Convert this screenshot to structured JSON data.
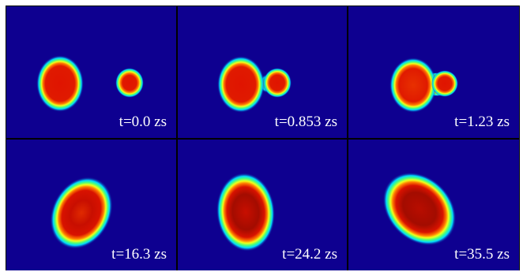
{
  "panels": [
    {
      "label": "t=0.0 zs"
    },
    {
      "label": "t=0.853 zs"
    },
    {
      "label": "t=1.23 zs"
    },
    {
      "label": "t=16.3 zs"
    },
    {
      "label": "t=24.2 zs"
    },
    {
      "label": "t=35.5 zs"
    }
  ],
  "colors": {
    "background": "#0e0090",
    "divider": "#000000",
    "outer_blue": "#1a40ff",
    "cyan": "#00d8ff",
    "green": "#4cff7a",
    "yellow": "#f0ff1a",
    "orange": "#ff6a00",
    "red": "#e81500",
    "core_red": "#c80e00",
    "dark_red": "#a30c00"
  }
}
